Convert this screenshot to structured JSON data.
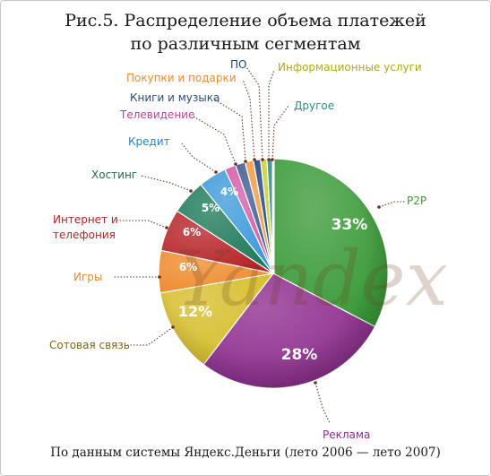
{
  "title_line1": "Рис.5. Распределение объема платежей",
  "title_line2": "по различным сегментам",
  "footer": "По данным системы Яндекс.Деньги (лето 2006 — лето 2007)",
  "watermark": "Yandex",
  "chart_data": {
    "type": "pie",
    "title": "Рис.5. Распределение объема платежей по различным сегментам",
    "slices": [
      {
        "key": "p2p",
        "label": "P2P",
        "value": 33,
        "value_label": "33%",
        "color": "#3a9a38"
      },
      {
        "key": "ads",
        "label": "Реклама",
        "value": 28,
        "value_label": "28%",
        "color": "#8e2c8e"
      },
      {
        "key": "mobile",
        "label": "Сотовая связь",
        "value": 12,
        "value_label": "12%",
        "color": "#d6bd2a"
      },
      {
        "key": "games",
        "label": "Игры",
        "value": 6,
        "value_label": "6%",
        "color": "#ee8b2c"
      },
      {
        "key": "internet",
        "label": "Интернет и\nтелефония",
        "value": 6,
        "value_label": "6%",
        "color": "#b62327"
      },
      {
        "key": "hosting",
        "label": "Хостинг",
        "value": 5,
        "value_label": "5%",
        "color": "#1f7a5a"
      },
      {
        "key": "credit",
        "label": "Кредит",
        "value": 4,
        "value_label": "4%",
        "color": "#3d9ad9"
      },
      {
        "key": "tv",
        "label": "Телевидение",
        "value": 1.6,
        "value_label": "",
        "color": "#d45aa8"
      },
      {
        "key": "books",
        "label": "Книги и музыка",
        "value": 1.4,
        "value_label": "",
        "color": "#3d5a92"
      },
      {
        "key": "gifts",
        "label": "Покупки и подарки",
        "value": 1.2,
        "value_label": "",
        "color": "#f09a3e"
      },
      {
        "key": "software",
        "label": "ПО",
        "value": 1,
        "value_label": "",
        "color": "#1c3f7e"
      },
      {
        "key": "info",
        "label": "Информационные услуги",
        "value": 0.9,
        "value_label": "",
        "color": "#c7cf2e"
      },
      {
        "key": "other",
        "label": "Другое",
        "value": 0.9,
        "value_label": "",
        "color": "#2a8a86"
      }
    ],
    "label_colors": {
      "p2p": "#3a9a38",
      "ads": "#8e2c8e",
      "mobile": "#7a6712",
      "games": "#ee8b2c",
      "internet": "#b62327",
      "hosting": "#1f6a4a",
      "credit": "#2a84c8",
      "tv": "#c0409a",
      "books": "#2f4a7a",
      "gifts": "#ee8b2c",
      "software": "#1c3f7e",
      "info": "#b0a818",
      "other": "#2a8a86"
    }
  }
}
